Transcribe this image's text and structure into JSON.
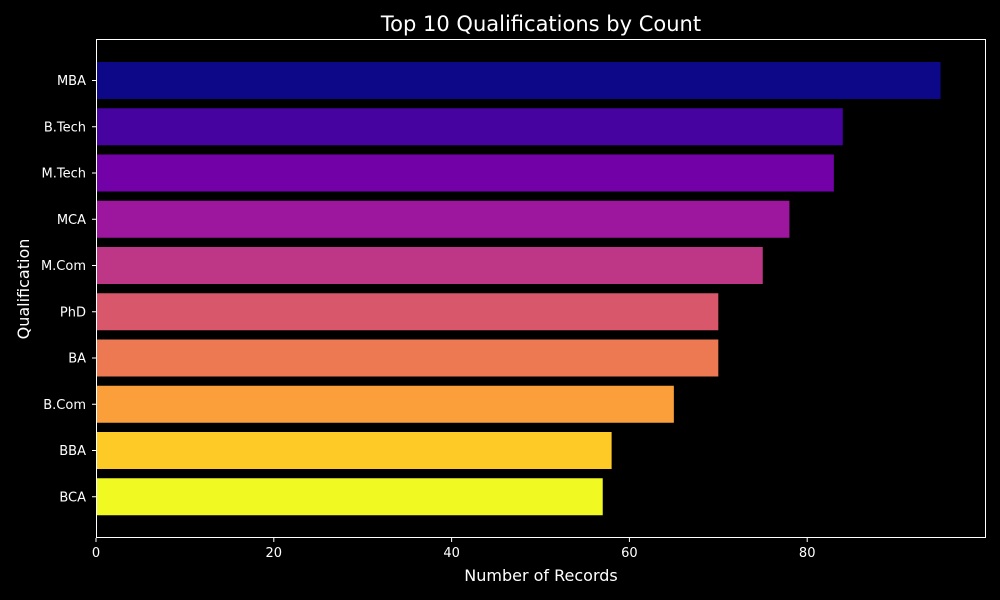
{
  "chart_data": {
    "type": "bar",
    "orientation": "horizontal",
    "title": "Top 10 Qualifications by Count",
    "xlabel": "Number of Records",
    "ylabel": "Qualification",
    "categories": [
      "MBA",
      "B.Tech",
      "M.Tech",
      "MCA",
      "M.Com",
      "PhD",
      "BA",
      "B.Com",
      "BBA",
      "BCA"
    ],
    "values": [
      95,
      84,
      83,
      78,
      75,
      70,
      70,
      65,
      58,
      57
    ],
    "colors": [
      "#0d0887",
      "#46039f",
      "#7201a8",
      "#9c179e",
      "#bd3786",
      "#d8576b",
      "#ed7953",
      "#fb9f3a",
      "#fdca26",
      "#f0f921"
    ],
    "xlim": [
      0,
      100
    ],
    "xticks": [
      0,
      20,
      40,
      60,
      80
    ],
    "grid": false,
    "background": "#000000",
    "foreground": "#ffffff"
  }
}
